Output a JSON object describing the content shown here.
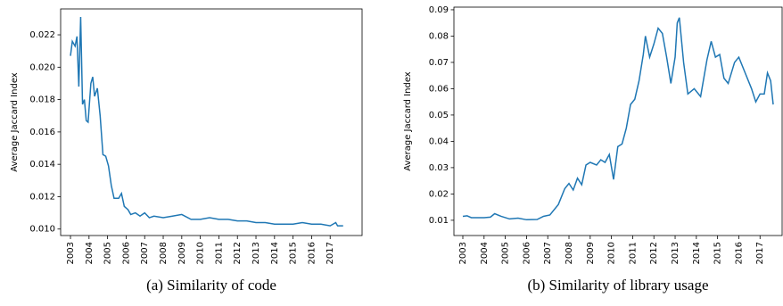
{
  "chart_data": [
    {
      "type": "line",
      "caption": "(a) Similarity of code",
      "ylabel": "Average Jaccard Index",
      "x": [
        2003.0,
        2003.1,
        2003.25,
        2003.35,
        2003.45,
        2003.55,
        2003.65,
        2003.75,
        2003.85,
        2003.95,
        2004.1,
        2004.2,
        2004.3,
        2004.45,
        2004.6,
        2004.75,
        2004.9,
        2005.05,
        2005.2,
        2005.35,
        2005.6,
        2005.75,
        2005.9,
        2006.1,
        2006.25,
        2006.5,
        2006.75,
        2007.0,
        2007.25,
        2007.5,
        2008.0,
        2008.5,
        2009.0,
        2009.5,
        2010.0,
        2010.5,
        2011.0,
        2011.5,
        2012.0,
        2012.5,
        2013.0,
        2013.5,
        2014.0,
        2014.5,
        2015.0,
        2015.5,
        2016.0,
        2016.5,
        2017.0,
        2017.3,
        2017.4,
        2017.7
      ],
      "values": [
        0.0207,
        0.0216,
        0.0213,
        0.0219,
        0.0188,
        0.0231,
        0.0177,
        0.018,
        0.0167,
        0.0166,
        0.019,
        0.0194,
        0.0182,
        0.0187,
        0.017,
        0.0146,
        0.0145,
        0.0139,
        0.0127,
        0.0119,
        0.0119,
        0.0122,
        0.0114,
        0.0112,
        0.0109,
        0.011,
        0.0108,
        0.011,
        0.0107,
        0.0108,
        0.0107,
        0.0108,
        0.0109,
        0.0106,
        0.0106,
        0.0107,
        0.0106,
        0.0106,
        0.0105,
        0.0105,
        0.0104,
        0.0104,
        0.0103,
        0.0103,
        0.0103,
        0.0104,
        0.0103,
        0.0103,
        0.0102,
        0.0104,
        0.0102,
        0.0102
      ],
      "color": "#1f77b4",
      "xlim": [
        2002.47,
        2018.72
      ],
      "xticks": [
        2003,
        2004,
        2005,
        2006,
        2007,
        2008,
        2009,
        2010,
        2011,
        2012,
        2013,
        2014,
        2015,
        2016,
        2017
      ],
      "ylim": [
        0.0096,
        0.0236
      ],
      "yticks": [
        {
          "value": 0.01,
          "label": "0.010"
        },
        0.012,
        0.014,
        0.016,
        0.018,
        {
          "value": 0.02,
          "label": "0.020"
        },
        0.022
      ]
    },
    {
      "type": "line",
      "caption": "(b) Similarity of library usage",
      "ylabel": "Average Jaccard Index",
      "x": [
        2003.0,
        2003.2,
        2003.4,
        2004.0,
        2004.3,
        2004.5,
        2004.8,
        2005.2,
        2005.6,
        2006.0,
        2006.5,
        2006.8,
        2007.1,
        2007.5,
        2007.8,
        2008.0,
        2008.2,
        2008.4,
        2008.6,
        2008.8,
        2009.0,
        2009.3,
        2009.5,
        2009.7,
        2009.9,
        2010.1,
        2010.3,
        2010.5,
        2010.7,
        2010.9,
        2011.1,
        2011.3,
        2011.5,
        2011.6,
        2011.8,
        2012.0,
        2012.2,
        2012.4,
        2012.6,
        2012.8,
        2013.0,
        2013.1,
        2013.2,
        2013.4,
        2013.6,
        2013.9,
        2014.2,
        2014.5,
        2014.7,
        2014.9,
        2015.1,
        2015.3,
        2015.5,
        2015.8,
        2016.0,
        2016.3,
        2016.6,
        2016.8,
        2017.0,
        2017.2,
        2017.35,
        2017.5,
        2017.62
      ],
      "values": [
        0.0115,
        0.0117,
        0.011,
        0.011,
        0.0112,
        0.0125,
        0.0115,
        0.0105,
        0.0108,
        0.0102,
        0.0103,
        0.0115,
        0.012,
        0.016,
        0.022,
        0.024,
        0.0215,
        0.026,
        0.0235,
        0.031,
        0.032,
        0.031,
        0.033,
        0.032,
        0.035,
        0.0255,
        0.038,
        0.039,
        0.045,
        0.054,
        0.056,
        0.063,
        0.073,
        0.08,
        0.072,
        0.077,
        0.083,
        0.081,
        0.072,
        0.062,
        0.072,
        0.085,
        0.087,
        0.07,
        0.058,
        0.06,
        0.057,
        0.071,
        0.078,
        0.072,
        0.073,
        0.064,
        0.062,
        0.07,
        0.072,
        0.066,
        0.06,
        0.055,
        0.058,
        0.058,
        0.066,
        0.063,
        0.054
      ],
      "color": "#1f77b4",
      "xlim": [
        2002.58,
        2018.04
      ],
      "xticks": [
        2003,
        2004,
        2005,
        2006,
        2007,
        2008,
        2009,
        2010,
        2011,
        2012,
        2013,
        2014,
        2015,
        2016,
        2017
      ],
      "ylim": [
        0.0042,
        0.091
      ],
      "yticks": [
        0.01,
        0.02,
        0.03,
        0.04,
        0.05,
        0.06,
        0.07,
        0.08,
        0.09
      ]
    }
  ]
}
